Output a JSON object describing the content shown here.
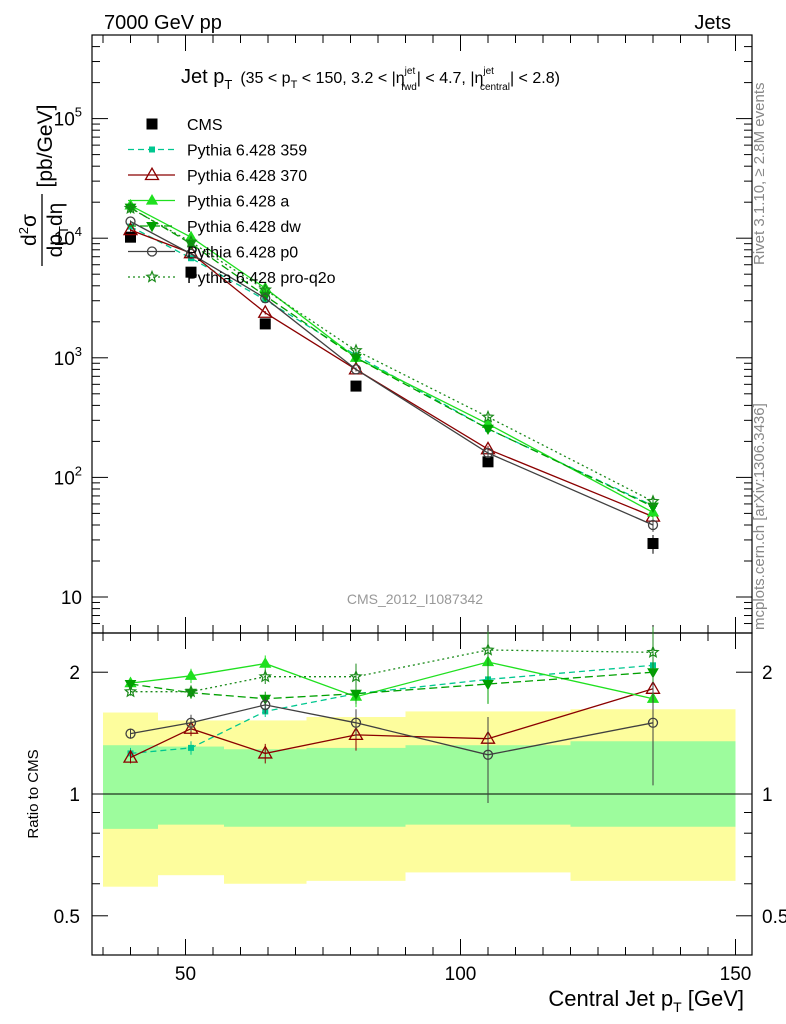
{
  "header": {
    "left": "7000 GeV pp",
    "right": "Jets"
  },
  "side_labels": {
    "rivet": "Rivet 3.1.10, ≥ 2.8M events",
    "mcplots": "mcplots.cern.ch [arXiv:1306.3436]"
  },
  "watermark": "CMS_2012_I1087342",
  "colors": {
    "CMS": "#000000",
    "Pythia 6.428 359": "#00c78f",
    "Pythia 6.428 370": "#8b0000",
    "Pythia 6.428 a": "#1fe01f",
    "Pythia 6.428 dw": "#00a000",
    "Pythia 6.428 p0": "#404040",
    "Pythia 6.428 pro-q2o": "#1a8a1a",
    "band_inner": "#9dfc9d",
    "band_outer": "#fdfd9d"
  },
  "chart_data": [
    {
      "type": "scatter",
      "panel": "main",
      "title": "Jet p_T (35 < p_T < 150, 3.2 < |η_fwd^jet| < 4.7, |η_central^jet| < 2.8)",
      "title_parts": {
        "main": "Jet p",
        "main_sub": "T",
        "cut": "(35 < p",
        "cut_sub": "T",
        "cut2": " < 150, 3.2 < |η",
        "fwd_sup": "jet",
        "fwd_sub": "fwd",
        "cut3": "| < 4.7, |η",
        "cen_sup": "jet",
        "cen_sub": "central",
        "cut4": "| < 2.8)"
      },
      "ylabel": "d²σ/dp_T dη [pb/GeV]",
      "ylabel_parts": {
        "num": "d",
        "num_sup": "2",
        "num2": "σ",
        "den": "dp",
        "den_sub": "T",
        "den2": "dη",
        "unit": "[pb/GeV]"
      },
      "yscale": "log",
      "ylim": [
        5,
        500000
      ],
      "xlim": [
        33,
        153
      ],
      "yticks": [
        10,
        100,
        1000,
        10000,
        100000
      ],
      "ytick_labels": [
        {
          "base": "10",
          "exp": ""
        },
        {
          "base": "10",
          "exp": "2"
        },
        {
          "base": "10",
          "exp": "3"
        },
        {
          "base": "10",
          "exp": "4"
        },
        {
          "base": "10",
          "exp": "5"
        }
      ],
      "legend_position": "top-left",
      "x": [
        40,
        51,
        64.5,
        81,
        105,
        135
      ],
      "series": [
        {
          "name": "CMS",
          "values": [
            10200,
            5200,
            1920,
            580,
            135,
            28
          ],
          "err_low": [
            600,
            300,
            120,
            40,
            12,
            5
          ],
          "err_high": [
            600,
            300,
            120,
            40,
            12,
            5
          ]
        },
        {
          "name": "Pythia 6.428 359",
          "values": [
            12500,
            6800,
            3050,
            1050,
            255,
            58
          ],
          "err_low": [
            300,
            200,
            100,
            40,
            15,
            6
          ],
          "err_high": [
            300,
            200,
            100,
            40,
            15,
            6
          ]
        },
        {
          "name": "Pythia 6.428 370",
          "values": [
            11700,
            7500,
            2380,
            800,
            172,
            47
          ],
          "err_low": [
            300,
            200,
            80,
            30,
            12,
            5
          ],
          "err_high": [
            300,
            200,
            80,
            30,
            12,
            5
          ]
        },
        {
          "name": "Pythia 6.428 a",
          "values": [
            18800,
            10200,
            3820,
            1000,
            280,
            51
          ],
          "err_low": [
            400,
            250,
            120,
            40,
            15,
            6
          ],
          "err_high": [
            400,
            250,
            120,
            40,
            15,
            6
          ]
        },
        {
          "name": "Pythia 6.428 dw",
          "values": [
            18000,
            9000,
            3300,
            1000,
            255,
            57
          ],
          "err_low": [
            400,
            250,
            120,
            40,
            15,
            6
          ],
          "err_high": [
            400,
            250,
            120,
            40,
            15,
            6
          ]
        },
        {
          "name": "Pythia 6.428 p0",
          "values": [
            13800,
            7400,
            3150,
            800,
            160,
            40
          ],
          "err_low": [
            300,
            200,
            100,
            30,
            12,
            5
          ],
          "err_high": [
            300,
            200,
            100,
            30,
            12,
            5
          ]
        },
        {
          "name": "Pythia 6.428 pro-q2o",
          "values": [
            17800,
            9300,
            3700,
            1150,
            320,
            63
          ],
          "err_low": [
            400,
            250,
            120,
            40,
            15,
            6
          ],
          "err_high": [
            400,
            250,
            120,
            40,
            15,
            6
          ]
        }
      ]
    },
    {
      "type": "scatter",
      "panel": "ratio",
      "xlabel": "Central Jet p_T [GeV]",
      "xlabel_parts": {
        "text": "Central Jet p",
        "sub": "T",
        "unit": " [GeV]"
      },
      "ylabel": "Ratio to CMS",
      "yscale": "log",
      "ylim": [
        0.4,
        2.5
      ],
      "xlim": [
        33,
        153
      ],
      "yticks": [
        0.5,
        1,
        2
      ],
      "ytick_labels": [
        "0.5",
        "1",
        "2"
      ],
      "xticks": [
        50,
        100,
        150
      ],
      "xtick_labels": [
        "50",
        "100",
        "150"
      ],
      "x": [
        40,
        51,
        64.5,
        81,
        105,
        135
      ],
      "bands": [
        {
          "x_lo": 35,
          "x_hi": 45,
          "inner": [
            0.82,
            1.32
          ],
          "outer": [
            0.59,
            1.59
          ]
        },
        {
          "x_lo": 45,
          "x_hi": 57,
          "inner": [
            0.84,
            1.31
          ],
          "outer": [
            0.63,
            1.52
          ]
        },
        {
          "x_lo": 57,
          "x_hi": 72,
          "inner": [
            0.83,
            1.29
          ],
          "outer": [
            0.6,
            1.52
          ]
        },
        {
          "x_lo": 72,
          "x_hi": 90,
          "inner": [
            0.83,
            1.3
          ],
          "outer": [
            0.61,
            1.55
          ]
        },
        {
          "x_lo": 90,
          "x_hi": 120,
          "inner": [
            0.84,
            1.32
          ],
          "outer": [
            0.64,
            1.6
          ]
        },
        {
          "x_lo": 120,
          "x_hi": 150,
          "inner": [
            0.83,
            1.35
          ],
          "outer": [
            0.61,
            1.62
          ]
        }
      ],
      "series": [
        {
          "name": "Pythia 6.428 359",
          "values": [
            1.26,
            1.3,
            1.6,
            1.77,
            1.92,
            2.08
          ],
          "err": [
            0.04,
            0.05,
            0.05,
            0.07,
            0.15,
            0.3
          ]
        },
        {
          "name": "Pythia 6.428 370",
          "values": [
            1.23,
            1.45,
            1.26,
            1.4,
            1.37,
            1.82
          ],
          "err": [
            0.04,
            0.06,
            0.07,
            0.12,
            0.14,
            0.3
          ]
        },
        {
          "name": "Pythia 6.428 a",
          "values": [
            1.88,
            1.96,
            2.1,
            1.74,
            2.12,
            1.72
          ],
          "err": [
            0.04,
            0.08,
            0.1,
            0.1,
            0.2,
            0.3
          ]
        },
        {
          "name": "Pythia 6.428 dw",
          "values": [
            1.87,
            1.78,
            1.72,
            1.77,
            1.87,
            2.0
          ],
          "err": [
            0.04,
            0.06,
            0.07,
            0.1,
            0.2,
            0.3
          ]
        },
        {
          "name": "Pythia 6.428 p0",
          "values": [
            1.41,
            1.5,
            1.66,
            1.5,
            1.25,
            1.5
          ],
          "err": [
            0.04,
            0.07,
            0.08,
            0.12,
            0.3,
            0.45
          ]
        },
        {
          "name": "Pythia 6.428 pro-q2o",
          "values": [
            1.79,
            1.79,
            1.95,
            1.95,
            2.27,
            2.24
          ],
          "err": [
            0.04,
            0.06,
            0.08,
            0.15,
            0.25,
            0.35
          ]
        }
      ]
    }
  ]
}
